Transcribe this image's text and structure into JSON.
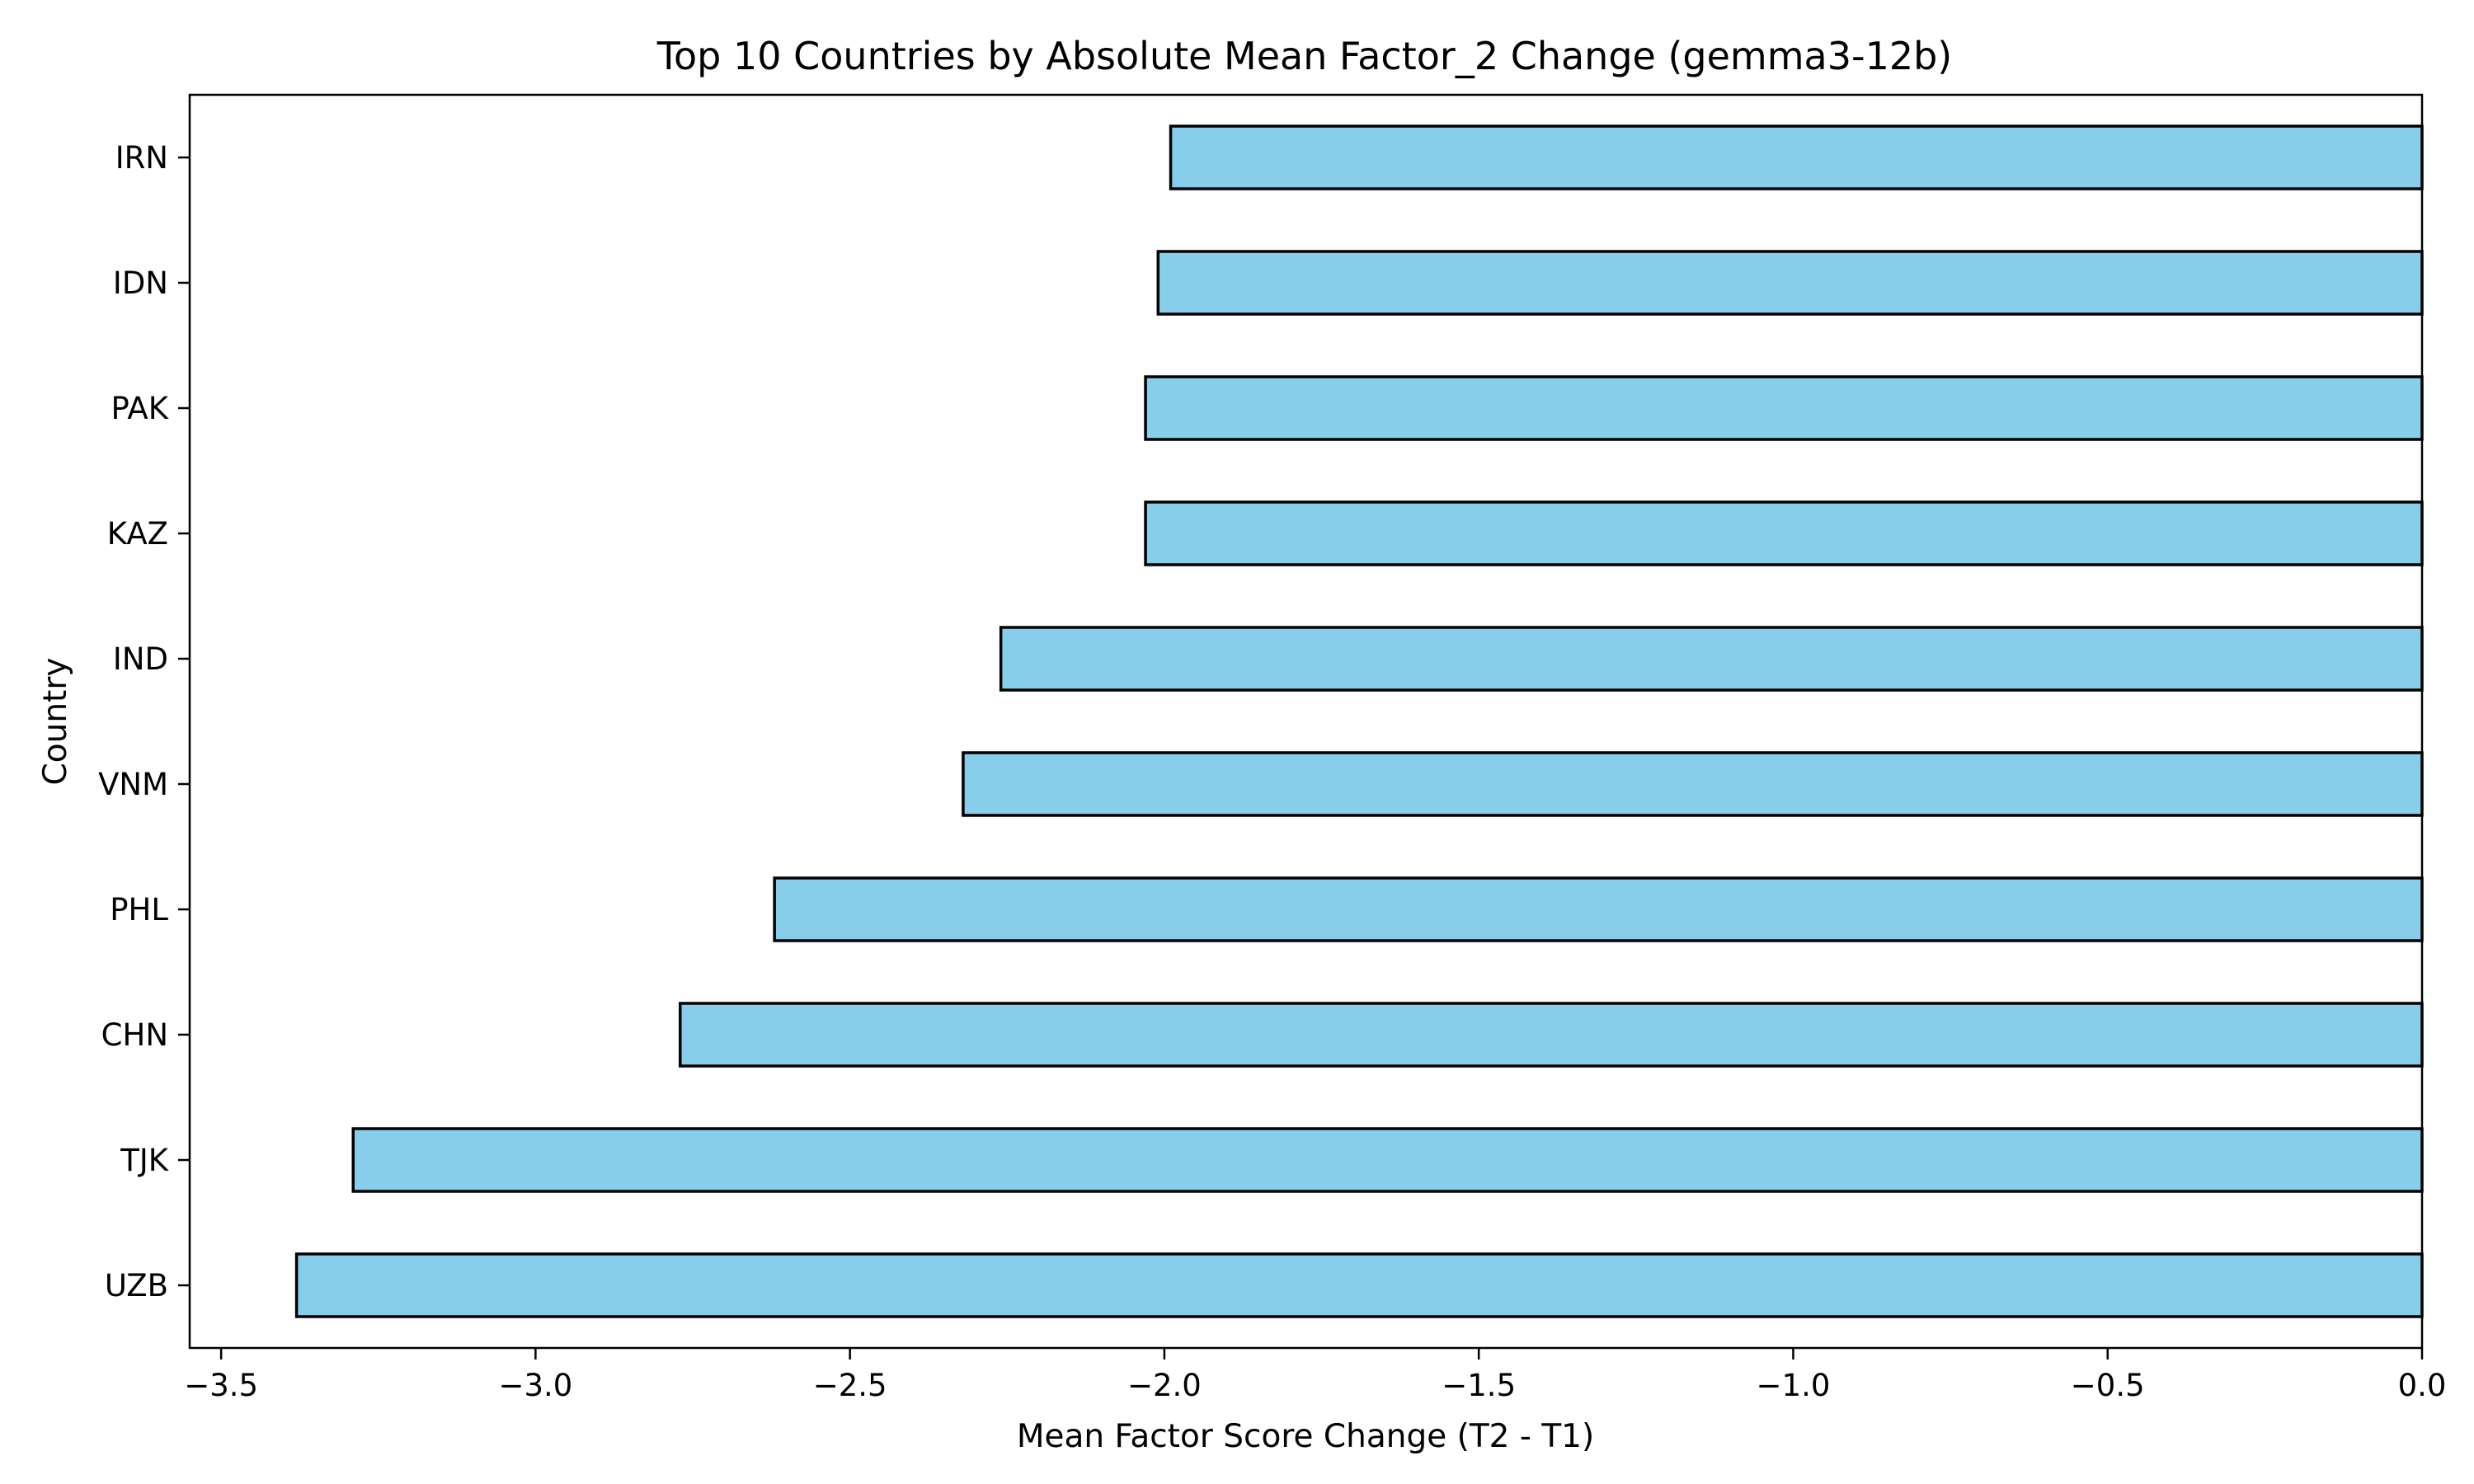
{
  "chart_data": {
    "type": "bar",
    "orientation": "horizontal",
    "title": "Top 10 Countries by Absolute Mean Factor_2 Change (gemma3-12b)",
    "xlabel": "Mean Factor Score Change (T2 - T1)",
    "ylabel": "Country",
    "categories": [
      "IRN",
      "IDN",
      "PAK",
      "KAZ",
      "IND",
      "VNM",
      "PHL",
      "CHN",
      "TJK",
      "UZB"
    ],
    "values": [
      -1.99,
      -2.01,
      -2.03,
      -2.03,
      -2.26,
      -2.32,
      -2.62,
      -2.77,
      -3.29,
      -3.38
    ],
    "xlim": [
      -3.55,
      0.0
    ],
    "xticks": [
      -3.5,
      -3.0,
      -2.5,
      -2.0,
      -1.5,
      -1.0,
      -0.5,
      0.0
    ],
    "xtick_labels": [
      "−3.5",
      "−3.0",
      "−2.5",
      "−2.0",
      "−1.5",
      "−1.0",
      "−0.5",
      "0.0"
    ],
    "bar_color": "#87ceeb",
    "edge_color": "#000000",
    "grid": false,
    "legend": false
  }
}
